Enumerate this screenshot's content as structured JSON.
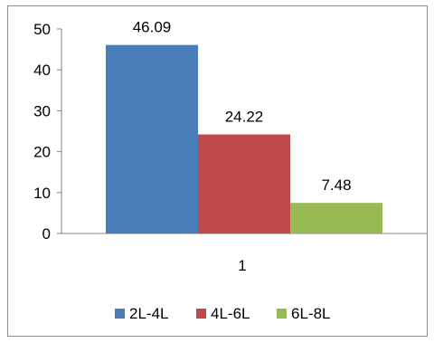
{
  "chart_data": {
    "type": "bar",
    "categories": [
      "1"
    ],
    "series": [
      {
        "name": "2L-4L",
        "values": [
          46.09
        ],
        "color": "#4a7ebb",
        "label": "46.09"
      },
      {
        "name": "4L-6L",
        "values": [
          24.22
        ],
        "color": "#be4b48",
        "label": "24.22"
      },
      {
        "name": "6L-8L",
        "values": [
          7.48
        ],
        "color": "#98b954",
        "label": "7.48"
      }
    ],
    "ylim": [
      0,
      50
    ],
    "yticks": [
      0,
      10,
      20,
      30,
      40,
      50
    ],
    "ytick_labels": [
      "0",
      "10",
      "20",
      "30",
      "40",
      "50"
    ],
    "title": "",
    "xlabel": "",
    "ylabel": "",
    "grid": false,
    "legend_position": "bottom"
  }
}
